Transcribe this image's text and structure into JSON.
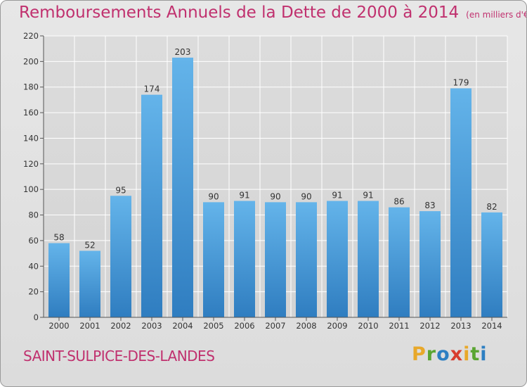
{
  "header": {
    "title": "Remboursements Annuels de la Dette de 2000 à 2014",
    "unit_note": "(en milliers d'€)"
  },
  "footer": {
    "commune": "SAINT-SULPICE-DES-LANDES",
    "logo": "Proxiti"
  },
  "colors": {
    "title": "#c0306e",
    "bar_top": "#64b4ea",
    "bar_bottom": "#2f7dc0",
    "grid": "#ffffff",
    "logo_letters": [
      "#e8a82a",
      "#5aa532",
      "#2d7fc2",
      "#d83c2e",
      "#e8a82a",
      "#5aa532",
      "#2d7fc2"
    ]
  },
  "chart_data": {
    "type": "bar",
    "title": "Remboursements Annuels de la Dette de 2000 à 2014",
    "subtitle": "(en milliers d'€)",
    "xlabel": "",
    "ylabel": "",
    "categories": [
      "2000",
      "2001",
      "2002",
      "2003",
      "2004",
      "2005",
      "2006",
      "2007",
      "2008",
      "2009",
      "2010",
      "2011",
      "2012",
      "2013",
      "2014"
    ],
    "values": [
      58,
      52,
      95,
      174,
      203,
      90,
      91,
      90,
      90,
      91,
      91,
      86,
      83,
      179,
      82
    ],
    "ylim": [
      0,
      220
    ],
    "yticks": [
      0,
      20,
      40,
      60,
      80,
      100,
      120,
      140,
      160,
      180,
      200,
      220
    ],
    "grid": true,
    "legend": "none"
  }
}
